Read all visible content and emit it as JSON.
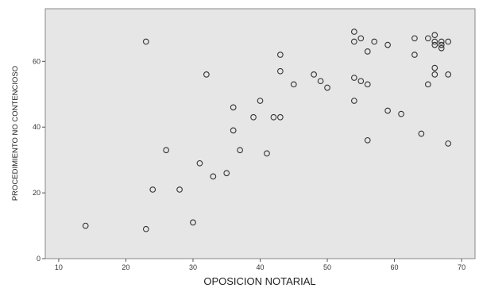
{
  "chart_data": {
    "type": "scatter",
    "title": "",
    "xlabel": "OPOSICION NOTARIAL",
    "ylabel": "PROCEDIMIENTO NO CONTENCIOSO",
    "xlim": [
      8,
      72
    ],
    "ylim": [
      0,
      76
    ],
    "xticks": [
      "10",
      "20",
      "30",
      "40",
      "50",
      "60",
      "70"
    ],
    "yticks": [
      "0",
      "20",
      "40",
      "60"
    ],
    "grid": false,
    "legend": "none",
    "colors": {
      "plot_bg": "#e6e6e6",
      "marker": "#333333"
    },
    "points": [
      {
        "x": 14,
        "y": 10
      },
      {
        "x": 23,
        "y": 66
      },
      {
        "x": 23,
        "y": 9
      },
      {
        "x": 24,
        "y": 21
      },
      {
        "x": 26,
        "y": 33
      },
      {
        "x": 28,
        "y": 21
      },
      {
        "x": 30,
        "y": 11
      },
      {
        "x": 31,
        "y": 29
      },
      {
        "x": 32,
        "y": 56
      },
      {
        "x": 33,
        "y": 25
      },
      {
        "x": 35,
        "y": 26
      },
      {
        "x": 36,
        "y": 46
      },
      {
        "x": 36,
        "y": 39
      },
      {
        "x": 37,
        "y": 33
      },
      {
        "x": 39,
        "y": 43
      },
      {
        "x": 40,
        "y": 48
      },
      {
        "x": 41,
        "y": 32
      },
      {
        "x": 42,
        "y": 43
      },
      {
        "x": 43,
        "y": 62
      },
      {
        "x": 43,
        "y": 57
      },
      {
        "x": 43,
        "y": 43
      },
      {
        "x": 45,
        "y": 53
      },
      {
        "x": 48,
        "y": 56
      },
      {
        "x": 49,
        "y": 54
      },
      {
        "x": 50,
        "y": 52
      },
      {
        "x": 54,
        "y": 69
      },
      {
        "x": 54,
        "y": 66
      },
      {
        "x": 54,
        "y": 55
      },
      {
        "x": 54,
        "y": 48
      },
      {
        "x": 55,
        "y": 67
      },
      {
        "x": 55,
        "y": 54
      },
      {
        "x": 56,
        "y": 63
      },
      {
        "x": 56,
        "y": 53
      },
      {
        "x": 56,
        "y": 36
      },
      {
        "x": 57,
        "y": 66
      },
      {
        "x": 59,
        "y": 65
      },
      {
        "x": 59,
        "y": 45
      },
      {
        "x": 61,
        "y": 44
      },
      {
        "x": 63,
        "y": 67
      },
      {
        "x": 63,
        "y": 62
      },
      {
        "x": 64,
        "y": 38
      },
      {
        "x": 65,
        "y": 67
      },
      {
        "x": 65,
        "y": 53
      },
      {
        "x": 66,
        "y": 68
      },
      {
        "x": 66,
        "y": 66
      },
      {
        "x": 66,
        "y": 65
      },
      {
        "x": 66,
        "y": 58
      },
      {
        "x": 66,
        "y": 56
      },
      {
        "x": 67,
        "y": 66
      },
      {
        "x": 67,
        "y": 65
      },
      {
        "x": 67,
        "y": 64
      },
      {
        "x": 68,
        "y": 66
      },
      {
        "x": 68,
        "y": 56
      },
      {
        "x": 68,
        "y": 35
      }
    ]
  }
}
